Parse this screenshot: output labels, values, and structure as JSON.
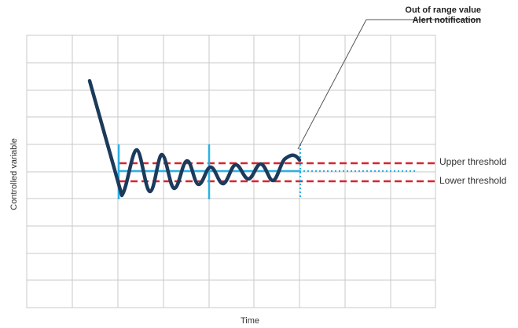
{
  "callout": {
    "line1": "Out of range value",
    "line2": "Alert notification"
  },
  "thresholds": {
    "upper_label": "Upper threshold",
    "lower_label": "Lower threshold"
  },
  "axes": {
    "xlabel": "Time",
    "ylabel": "Controlled variable"
  },
  "colors": {
    "signal": "#1b3a5c",
    "threshold": "#d6262f",
    "setpoint": "#2cb1e6",
    "grid": "#c8c8c8",
    "callout_line": "#555555"
  }
}
